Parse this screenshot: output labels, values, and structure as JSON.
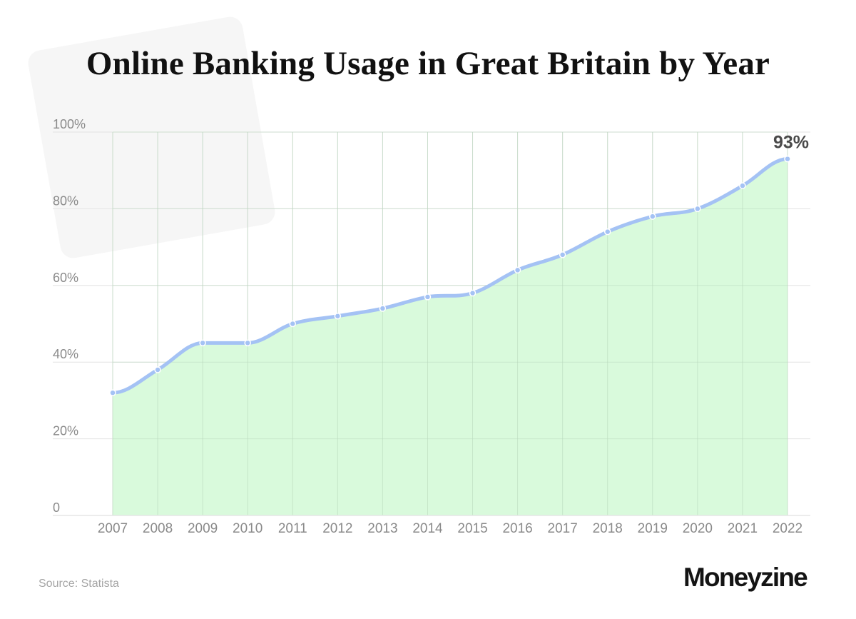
{
  "header": {
    "title": "Online Banking Usage in Great Britain by Year"
  },
  "footer": {
    "source": "Source: Statista",
    "brand": "Moneyzine"
  },
  "annotation": {
    "label": "93%"
  },
  "colors": {
    "line": "#a4c2f4",
    "area": "#d9fadc",
    "grid": "#e3e3e3",
    "tick": "#8a8a8a",
    "annotation": "#4a4a4a"
  },
  "chart_data": {
    "type": "area",
    "title": "Online Banking Usage in Great Britain by Year",
    "xlabel": "",
    "ylabel": "",
    "categories": [
      "2007",
      "2008",
      "2009",
      "2010",
      "2011",
      "2012",
      "2013",
      "2014",
      "2015",
      "2016",
      "2017",
      "2018",
      "2019",
      "2020",
      "2021",
      "2022"
    ],
    "values": [
      32,
      38,
      45,
      45,
      50,
      52,
      54,
      57,
      58,
      64,
      68,
      74,
      78,
      80,
      86,
      93
    ],
    "unit": "%",
    "ylim": [
      0,
      100
    ],
    "yticks": [
      "0",
      "20%",
      "40%",
      "60%",
      "80%",
      "100%"
    ],
    "grid": true,
    "legend": "none",
    "annotations": [
      {
        "x": "2022",
        "text": "93%"
      }
    ],
    "source": "Source: Statista"
  }
}
